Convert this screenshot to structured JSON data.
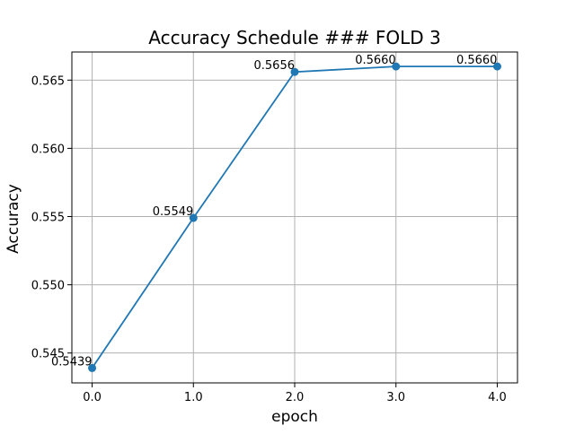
{
  "chart_data": {
    "type": "line",
    "title": "Accuracy Schedule ### FOLD 3",
    "xlabel": "epoch",
    "ylabel": "Accuracy",
    "x": [
      0.0,
      1.0,
      2.0,
      3.0,
      4.0
    ],
    "x_tick_labels": [
      "0.0",
      "1.0",
      "2.0",
      "3.0",
      "4.0"
    ],
    "series": [
      {
        "values": [
          0.5439,
          0.5549,
          0.5656,
          0.566,
          0.566
        ],
        "point_labels": [
          "0.5439",
          "0.5549",
          "0.5656",
          "0.5660",
          "0.5660"
        ],
        "color": "#1f77b4",
        "marker": "circle"
      }
    ],
    "y_ticks": [
      0.545,
      0.55,
      0.555,
      0.56,
      0.565
    ],
    "y_tick_labels": [
      "0.545",
      "0.550",
      "0.555",
      "0.560",
      "0.565"
    ],
    "xlim": [
      -0.2,
      4.2
    ],
    "ylim": [
      0.54281,
      0.56706
    ],
    "grid": true,
    "grid_color": "#b0b0b0",
    "axis_color": "#000000",
    "legend": "none"
  }
}
